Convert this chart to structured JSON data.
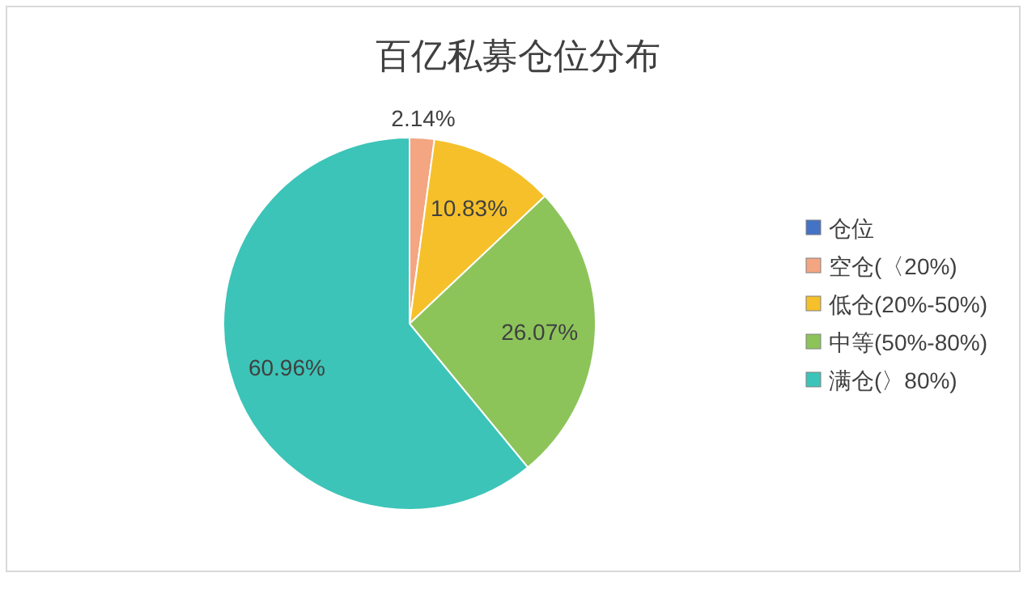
{
  "chart_data": {
    "type": "pie",
    "title": "百亿私募仓位分布",
    "categories": [
      "仓位",
      "空仓(〈20%)",
      "低仓(20%-50%)",
      "中等(50%-80%)",
      "满仓(〉80%)"
    ],
    "values": [
      0,
      2.14,
      10.83,
      26.07,
      60.96
    ],
    "colors": [
      "#4472c4",
      "#f4a582",
      "#f5c02a",
      "#8cc45a",
      "#3cc4b8"
    ],
    "value_labels": [
      null,
      "2.14%",
      "10.83%",
      "26.07%",
      "60.96%"
    ],
    "legend": "right"
  }
}
